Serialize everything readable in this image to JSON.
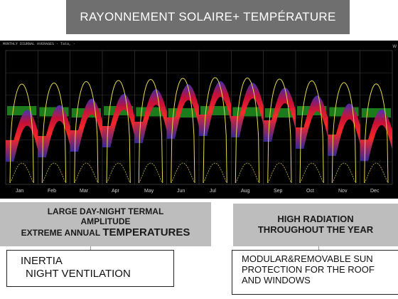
{
  "title": "RAYONNEMENT SOLAIRE+ TEMPÉRATURE",
  "chart": {
    "caption": "MONTHLY DIURNAL AVERAGES - Tata, -",
    "unit_label": "W",
    "months": [
      "Jan",
      "Feb",
      "Mar",
      "Apr",
      "May",
      "Jun",
      "Jul",
      "Aug",
      "Sep",
      "Oct",
      "Nov",
      "Dec"
    ]
  },
  "left_callout": {
    "line1": "LARGE DAY-NIGHT TERMAL",
    "line2": "AMPLITUDE",
    "line3a": "EXTREME ANNUAL ",
    "line3b": "TEMPERATURES"
  },
  "right_callout": {
    "line1": "HIGH RADIATION",
    "line2": "THROUGHOUT THE YEAR"
  },
  "left_answer": {
    "line1": "INERTIA",
    "line2": "NIGHT VENTILATION"
  },
  "right_answer": {
    "line1": "MODULAR&REMOVABLE  SUN",
    "line2": "PROTECTION FOR THE ROOF",
    "line3": "AND  WINDOWS"
  },
  "colors": {
    "title_bg": "#6f6f6f",
    "callout_bg": "#bdbdbd",
    "temperature_band": "#e0162a",
    "comfort_band": "#1f8a1f",
    "radiation_line": "#e6d84a"
  }
}
